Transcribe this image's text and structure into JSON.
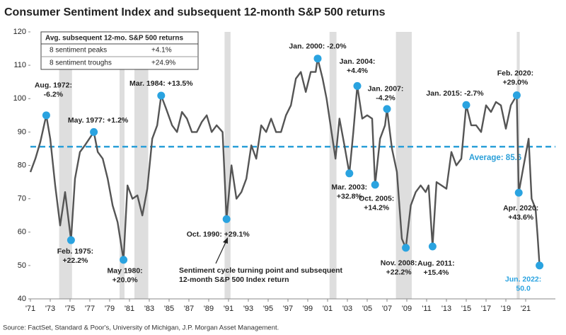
{
  "chart_data": {
    "type": "line",
    "title": "Consumer Sentiment Index and subsequent 12-month S&P 500 returns",
    "source": "Source: FactSet, Standard & Poor's, University of Michigan, J.P. Morgan Asset Management.",
    "xlim": [
      1971,
      2024
    ],
    "xticks": [
      {
        "value": 1971,
        "label": "'71"
      },
      {
        "value": 1973,
        "label": "'73"
      },
      {
        "value": 1975,
        "label": "'75"
      },
      {
        "value": 1977,
        "label": "'77"
      },
      {
        "value": 1979,
        "label": "'79"
      },
      {
        "value": 1981,
        "label": "'81"
      },
      {
        "value": 1983,
        "label": "'83"
      },
      {
        "value": 1985,
        "label": "'85"
      },
      {
        "value": 1987,
        "label": "'87"
      },
      {
        "value": 1989,
        "label": "'89"
      },
      {
        "value": 1991,
        "label": "'91"
      },
      {
        "value": 1993,
        "label": "'93"
      },
      {
        "value": 1995,
        "label": "'95"
      },
      {
        "value": 1997,
        "label": "'97"
      },
      {
        "value": 1999,
        "label": "'99"
      },
      {
        "value": 2001,
        "label": "'01"
      },
      {
        "value": 2003,
        "label": "'03"
      },
      {
        "value": 2005,
        "label": "'05"
      },
      {
        "value": 2007,
        "label": "'07"
      },
      {
        "value": 2009,
        "label": "'09"
      },
      {
        "value": 2011,
        "label": "'11"
      },
      {
        "value": 2013,
        "label": "'13"
      },
      {
        "value": 2015,
        "label": "'15"
      },
      {
        "value": 2017,
        "label": "'17"
      },
      {
        "value": 2019,
        "label": "'19"
      },
      {
        "value": 2021,
        "label": "'21"
      }
    ],
    "ylim": [
      40,
      120
    ],
    "yticks": [
      40,
      50,
      60,
      70,
      80,
      90,
      100,
      110,
      120
    ],
    "recessions": [
      [
        1973.9,
        1975.2
      ],
      [
        1980.0,
        1980.5
      ],
      [
        1981.5,
        1982.9
      ],
      [
        1990.6,
        1991.2
      ],
      [
        2001.2,
        2001.9
      ],
      [
        2007.9,
        2009.5
      ],
      [
        2020.1,
        2020.4
      ]
    ],
    "recession_color": "#dedede",
    "series": [
      {
        "name": "Consumer Sentiment Index",
        "color": "#555555",
        "x": [
          1971.0,
          1971.5,
          1972.0,
          1972.6,
          1973.0,
          1973.5,
          1974.0,
          1974.5,
          1975.1,
          1975.5,
          1976.0,
          1976.5,
          1977.4,
          1977.8,
          1978.3,
          1978.8,
          1979.3,
          1979.8,
          1980.4,
          1980.8,
          1981.3,
          1981.8,
          1982.3,
          1982.8,
          1983.3,
          1983.8,
          1984.2,
          1984.7,
          1985.3,
          1985.8,
          1986.3,
          1986.8,
          1987.3,
          1987.8,
          1988.3,
          1988.8,
          1989.3,
          1989.8,
          1990.4,
          1990.8,
          1991.3,
          1991.8,
          1992.3,
          1992.8,
          1993.3,
          1993.8,
          1994.3,
          1994.8,
          1995.3,
          1995.8,
          1996.3,
          1996.8,
          1997.3,
          1997.8,
          1998.3,
          1998.8,
          1999.3,
          1999.8,
          2000.0,
          2000.5,
          2000.9,
          2001.4,
          2001.8,
          2002.2,
          2002.7,
          2003.2,
          2003.6,
          2004.0,
          2004.5,
          2005.0,
          2005.5,
          2005.8,
          2006.3,
          2006.8,
          2007.0,
          2007.5,
          2008.0,
          2008.5,
          2008.9,
          2009.4,
          2009.9,
          2010.4,
          2010.9,
          2011.2,
          2011.6,
          2012.0,
          2012.5,
          2013.0,
          2013.5,
          2014.0,
          2014.5,
          2015.0,
          2015.5,
          2016.0,
          2016.5,
          2017.0,
          2017.5,
          2018.0,
          2018.5,
          2019.0,
          2019.5,
          2020.1,
          2020.3,
          2020.8,
          2021.3,
          2021.6,
          2022.0,
          2022.2,
          2022.4
        ],
        "values": [
          78,
          82,
          87,
          95,
          88,
          74,
          62,
          72,
          57.6,
          76,
          84,
          86,
          90,
          84,
          82,
          76,
          68,
          63,
          51.7,
          74,
          70,
          71,
          65,
          73,
          88,
          92,
          100.9,
          97,
          92,
          90,
          96,
          94,
          90,
          90,
          93,
          95,
          90,
          92,
          90,
          63.9,
          80,
          70,
          72,
          76,
          86,
          82,
          92,
          90,
          94,
          90,
          90,
          95,
          98,
          106,
          108,
          102,
          108,
          108,
          112,
          106,
          100,
          90,
          82,
          94,
          86,
          77.6,
          90,
          103.8,
          94,
          95,
          94,
          74.2,
          88,
          92,
          96.9,
          85,
          78,
          58,
          55.3,
          68,
          72,
          74,
          72,
          74,
          55.7,
          75,
          74,
          73,
          84,
          80,
          82,
          98.1,
          92,
          92,
          90,
          98,
          96,
          99,
          98,
          91,
          98,
          101,
          71.8,
          80,
          88,
          70,
          67,
          59,
          50.0
        ]
      }
    ],
    "average": {
      "value": 85.6,
      "label": "Average: 85.6",
      "color": "#2a9fd8"
    },
    "point_color": "#2aa3e0",
    "annotations": [
      {
        "x": 1972.6,
        "y": 95,
        "lines": [
          "Aug. 1972:",
          "-6.2%"
        ]
      },
      {
        "x": 1975.1,
        "y": 57.6,
        "lines": [
          "Feb. 1975:",
          "+22.2%"
        ]
      },
      {
        "x": 1977.4,
        "y": 90,
        "lines": [
          "May. 1977: +1.2%"
        ]
      },
      {
        "x": 1980.4,
        "y": 51.7,
        "lines": [
          "May 1980:",
          "+20.0%"
        ]
      },
      {
        "x": 1984.2,
        "y": 100.9,
        "lines": [
          "Mar. 1984: +13.5%"
        ]
      },
      {
        "x": 1990.8,
        "y": 63.9,
        "lines": [
          "Oct. 1990: +29.1%"
        ]
      },
      {
        "x": 2000.0,
        "y": 112,
        "lines": [
          "Jan. 2000: -2.0%"
        ]
      },
      {
        "x": 2003.2,
        "y": 77.6,
        "lines": [
          "Mar. 2003:",
          "+32.8%"
        ]
      },
      {
        "x": 2004.0,
        "y": 103.8,
        "lines": [
          "Jan. 2004:",
          "+4.4%"
        ]
      },
      {
        "x": 2005.8,
        "y": 74.2,
        "lines": [
          "Oct. 2005:",
          "+14.2%"
        ]
      },
      {
        "x": 2007.0,
        "y": 96.9,
        "lines": [
          "Jan. 2007:",
          "-4.2%"
        ]
      },
      {
        "x": 2008.9,
        "y": 55.3,
        "lines": [
          "Nov. 2008:",
          "+22.2%"
        ]
      },
      {
        "x": 2011.6,
        "y": 55.7,
        "lines": [
          "Aug. 2011:",
          "+15.4%"
        ]
      },
      {
        "x": 2015.0,
        "y": 98.1,
        "lines": [
          "Jan. 2015: -2.7%"
        ]
      },
      {
        "x": 2020.1,
        "y": 101,
        "lines": [
          "Feb. 2020:",
          "+29.0%"
        ]
      },
      {
        "x": 2020.3,
        "y": 71.8,
        "lines": [
          "Apr. 2020:",
          "+43.6%"
        ]
      },
      {
        "x": 2022.4,
        "y": 50.0,
        "lines": [
          "Jun. 2022:",
          "50.0"
        ]
      }
    ],
    "note": [
      "Sentiment cycle turning point and subsequent",
      "12-month S&P 500 Index return"
    ],
    "table": {
      "header": "Avg. subsequent 12-mo. S&P 500 returns",
      "rows": [
        [
          "8 sentiment peaks",
          "+4.1%"
        ],
        [
          "8 sentiment troughs",
          "+24.9%"
        ]
      ]
    }
  }
}
